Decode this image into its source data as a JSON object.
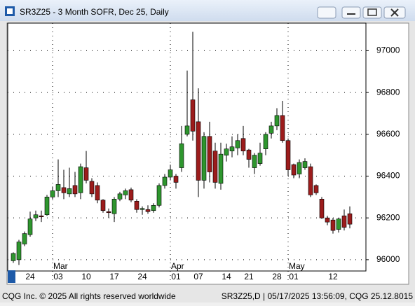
{
  "window": {
    "title": "SR3Z25 - 3 Month SOFR, Dec 25, Daily"
  },
  "footer": {
    "left": "CQG Inc. © 2025 All rights reserved worldwide",
    "right": "SR3Z25,D | 05/17/2025 13:56:09, CQG 25.12.8015"
  },
  "chart_data": {
    "type": "candlestick",
    "categories": [
      null,
      null,
      null,
      "24",
      null,
      null,
      null,
      null,
      "03",
      null,
      null,
      null,
      null,
      "10",
      null,
      null,
      null,
      null,
      "17",
      null,
      null,
      null,
      null,
      "24",
      null,
      null,
      null,
      null,
      null,
      "01",
      null,
      null,
      null,
      "07",
      null,
      null,
      null,
      null,
      "14",
      null,
      null,
      null,
      "21",
      null,
      null,
      null,
      null,
      "28",
      null,
      null,
      "01",
      null,
      null,
      null,
      null,
      null,
      null,
      "12",
      null,
      null,
      null
    ],
    "month_labels": [
      null,
      null,
      null,
      null,
      null,
      null,
      null,
      null,
      "Mar",
      null,
      null,
      null,
      null,
      null,
      null,
      null,
      null,
      null,
      null,
      null,
      null,
      null,
      null,
      null,
      null,
      null,
      null,
      null,
      null,
      "Apr",
      null,
      null,
      null,
      null,
      null,
      null,
      null,
      null,
      null,
      null,
      null,
      null,
      null,
      null,
      null,
      null,
      null,
      null,
      null,
      null,
      "May",
      null,
      null,
      null,
      null,
      null,
      null,
      null,
      null,
      null,
      null
    ],
    "open": [
      95995,
      96000,
      96075,
      96120,
      96200,
      96210,
      96215,
      96300,
      96330,
      96345,
      96315,
      96355,
      96320,
      96440,
      96375,
      96355,
      96285,
      96230,
      96220,
      96290,
      96310,
      96335,
      96280,
      96240,
      96240,
      96235,
      96260,
      96355,
      96395,
      96400,
      96440,
      96600,
      96765,
      96660,
      96380,
      96590,
      96520,
      96365,
      96500,
      96520,
      96535,
      96580,
      96525,
      96440,
      96460,
      96530,
      96605,
      96640,
      96690,
      96570,
      96455,
      96410,
      96440,
      96445,
      96355,
      96290,
      96200,
      96190,
      96145,
      96210,
      96220
    ],
    "high": [
      96035,
      96095,
      96135,
      96230,
      96235,
      96235,
      96310,
      96350,
      96480,
      96430,
      96440,
      96420,
      96460,
      96520,
      96390,
      96370,
      96290,
      96245,
      96300,
      96325,
      96340,
      96345,
      96290,
      96255,
      96260,
      96270,
      96365,
      96410,
      96455,
      96410,
      96640,
      96905,
      97090,
      96820,
      96610,
      96660,
      96560,
      96560,
      96555,
      96590,
      96600,
      96640,
      96530,
      96510,
      96560,
      96610,
      96660,
      96725,
      96760,
      96580,
      96460,
      96480,
      96485,
      96460,
      96360,
      96300,
      96210,
      96200,
      96200,
      96240,
      96255
    ],
    "low": [
      95985,
      95975,
      96065,
      96110,
      96185,
      96180,
      96210,
      96290,
      96300,
      96290,
      96300,
      96300,
      96290,
      96365,
      96300,
      96270,
      96225,
      96200,
      96180,
      96280,
      96290,
      96275,
      96225,
      96215,
      96220,
      96225,
      96250,
      96340,
      96380,
      96340,
      96420,
      96590,
      96570,
      96300,
      96340,
      96370,
      96340,
      96335,
      96470,
      96490,
      96500,
      96500,
      96440,
      96410,
      96450,
      96500,
      96580,
      96620,
      96560,
      96400,
      96390,
      96390,
      96430,
      96300,
      96310,
      96195,
      96165,
      96125,
      96130,
      96140,
      96150
    ],
    "close": [
      96030,
      96085,
      96125,
      96195,
      96215,
      96205,
      96300,
      96330,
      96360,
      96320,
      96340,
      96315,
      96445,
      96380,
      96315,
      96285,
      96235,
      96225,
      96290,
      96315,
      96330,
      96285,
      96240,
      96245,
      96230,
      96260,
      96355,
      96395,
      96430,
      96370,
      96555,
      96640,
      96615,
      96380,
      96590,
      96420,
      96370,
      96505,
      96530,
      96540,
      96570,
      96520,
      96480,
      96500,
      96510,
      96600,
      96640,
      96690,
      96570,
      96430,
      96405,
      96465,
      96470,
      96310,
      96320,
      96200,
      96180,
      96140,
      96195,
      96155,
      96170
    ],
    "up_color": "#2e962e",
    "down_color": "#9c1c1c",
    "ylim": [
      95946,
      97132
    ],
    "yticks": [
      96000,
      96200,
      96400,
      96600,
      96800,
      97000
    ],
    "grid": true
  }
}
